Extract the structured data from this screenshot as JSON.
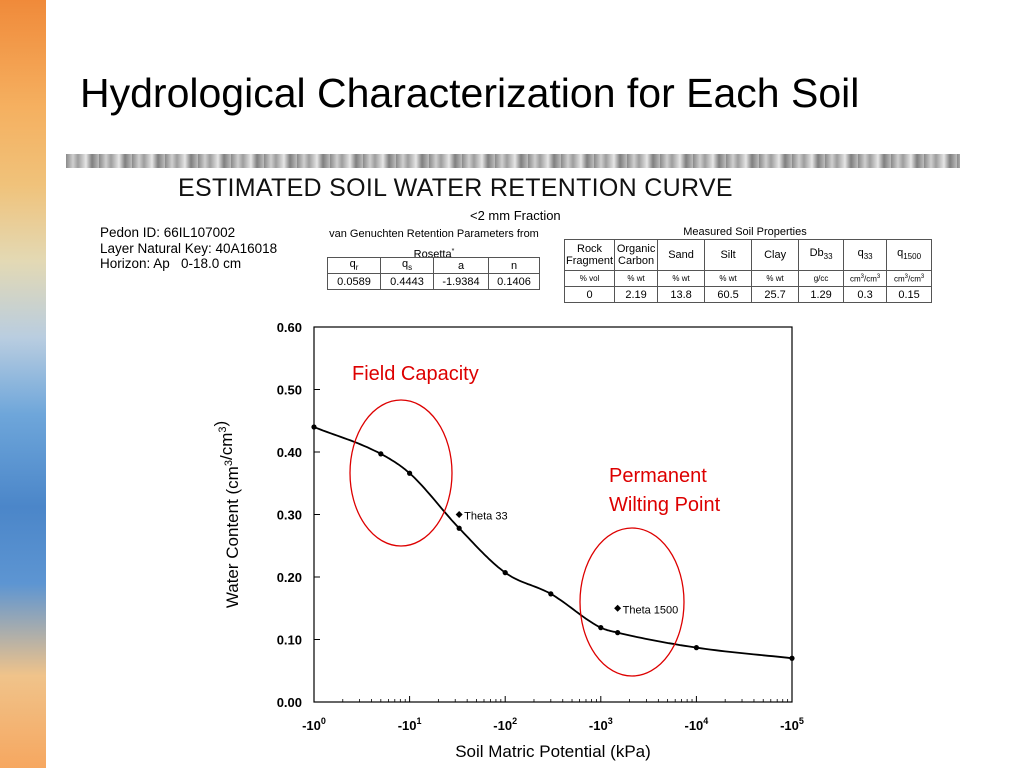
{
  "slide": {
    "title": "Hydrological Characterization for Each Soil",
    "heading": "ESTIMATED SOIL WATER RETENTION CURVE",
    "fraction": "<2 mm Fraction"
  },
  "pedon": {
    "id_line": "Pedon ID: 66IL107002",
    "layer_line": "Layer Natural Key: 40A16018",
    "horizon_line": "Horizon: Ap   0-18.0 cm"
  },
  "vg_params": {
    "title_line1": "van Genuchten Retention Parameters from",
    "title_line2": "Rosetta",
    "title_mark": "*",
    "headers": [
      "q",
      "q",
      "a",
      "n"
    ],
    "header_subs": [
      "r",
      "s",
      "",
      ""
    ],
    "values": [
      "0.0589",
      "0.4443",
      "-1.9384",
      "0.1406"
    ]
  },
  "soil_props": {
    "title": "Measured Soil Properties",
    "headers": [
      {
        "main": "Rock",
        "second": "Fragment",
        "sub": ""
      },
      {
        "main": "Organic",
        "second": "Carbon",
        "sub": ""
      },
      {
        "main": "Sand",
        "second": "",
        "sub": ""
      },
      {
        "main": "Silt",
        "second": "",
        "sub": ""
      },
      {
        "main": "Clay",
        "second": "",
        "sub": ""
      },
      {
        "main": "Db",
        "second": "",
        "sub": "33"
      },
      {
        "main": "q",
        "second": "",
        "sub": "33"
      },
      {
        "main": "q",
        "second": "",
        "sub": "1500"
      }
    ],
    "units": [
      "% vol",
      "% wt",
      "% wt",
      "% wt",
      "% wt",
      "g/cc",
      "cm3/cm3",
      "cm3/cm3"
    ],
    "values": [
      "0",
      "2.19",
      "13.8",
      "60.5",
      "25.7",
      "1.29",
      "0.3",
      "0.15"
    ]
  },
  "annotations": {
    "field_capacity": "Field Capacity",
    "pwp_line1": "Permanent",
    "pwp_line2": "Wilting Point",
    "theta33": "Theta 33",
    "theta1500": "Theta 1500",
    "color": "#dd0000"
  },
  "chart_data": {
    "type": "line",
    "xlabel": "Soil Matric Potential (kPa)",
    "ylabel": "Water Content (cm3/cm3)",
    "x_scale": "log",
    "xlim": [
      -1,
      -100000
    ],
    "ylim": [
      0,
      0.6
    ],
    "x_ticks": [
      {
        "base": "-10",
        "exp": "0"
      },
      {
        "base": "-10",
        "exp": "1"
      },
      {
        "base": "-10",
        "exp": "2"
      },
      {
        "base": "-10",
        "exp": "3"
      },
      {
        "base": "-10",
        "exp": "4"
      },
      {
        "base": "-10",
        "exp": "5"
      }
    ],
    "y_ticks": [
      "0.00",
      "0.10",
      "0.20",
      "0.30",
      "0.40",
      "0.50",
      "0.60"
    ],
    "series": [
      {
        "x": [
          -1,
          -5,
          -10,
          -33,
          -100,
          -300,
          -1000,
          -1500,
          -10000,
          -100000
        ],
        "y": [
          0.44,
          0.397,
          0.366,
          0.278,
          0.207,
          0.173,
          0.119,
          0.111,
          0.087,
          0.07
        ]
      }
    ],
    "points": [
      {
        "label": "Theta 33",
        "x": -33,
        "y": 0.3
      },
      {
        "label": "Theta 1500",
        "x": -1500,
        "y": 0.15
      }
    ],
    "grid": false,
    "legend": "none"
  }
}
